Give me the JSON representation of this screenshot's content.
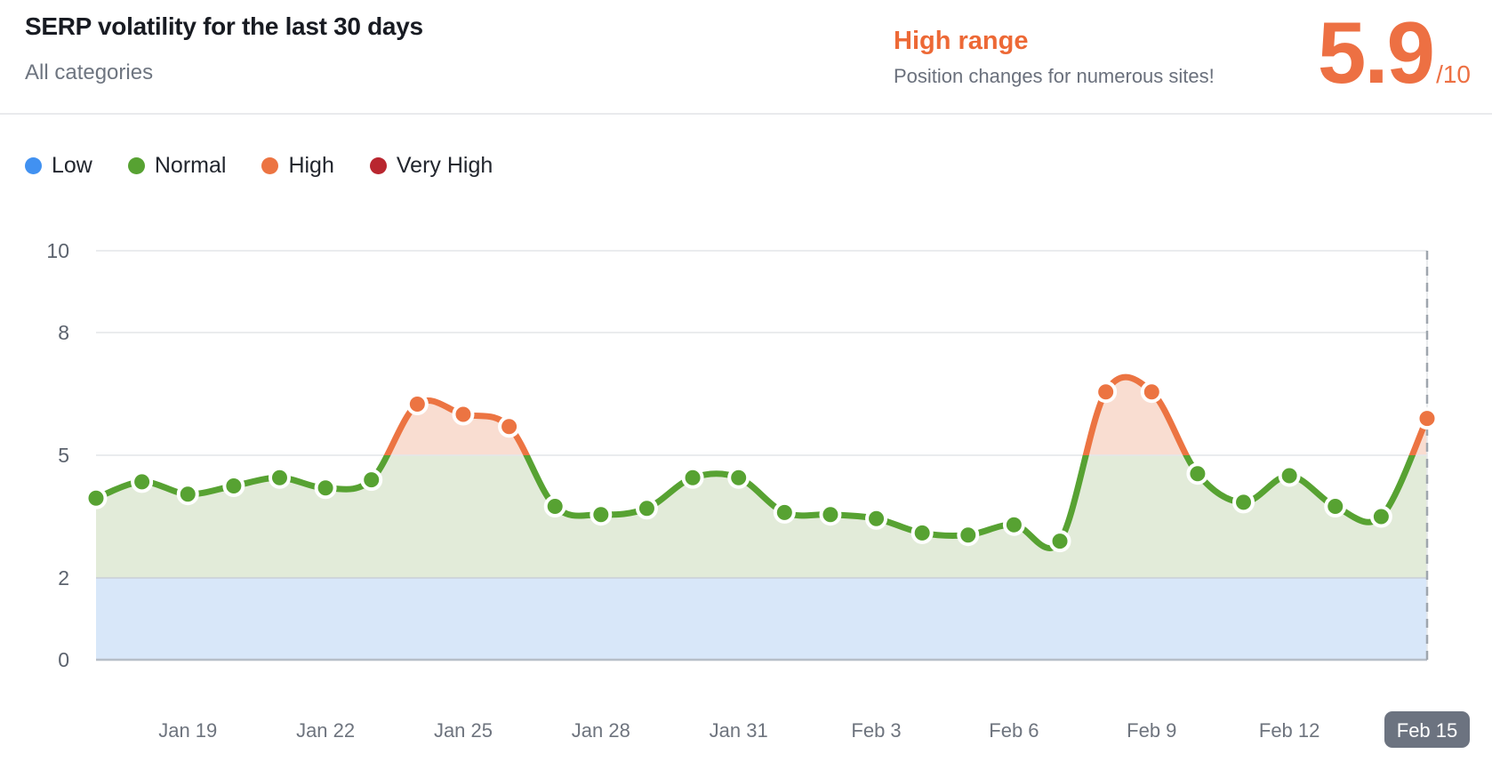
{
  "header": {
    "title": "SERP volatility for the last 30 days",
    "subtitle": "All categories",
    "range_label": "High range",
    "range_description": "Position changes for numerous sites!",
    "score": "5.9",
    "score_suffix": "/10"
  },
  "legend": {
    "items": [
      {
        "label": "Low",
        "color_key": "low"
      },
      {
        "label": "Normal",
        "color_key": "normal"
      },
      {
        "label": "High",
        "color_key": "high"
      },
      {
        "label": "Very High",
        "color_key": "very_high"
      }
    ]
  },
  "colors": {
    "low": "#4191F1",
    "normal": "#57A232",
    "high": "#EC7442",
    "very_high": "#B9262F",
    "fill_low": "#D8E7F9",
    "fill_normal": "#E2EBD9",
    "fill_high": "#F9DDD1",
    "accent_orange": "#ED6936",
    "score_orange": "#ED7043",
    "badge_bg": "#6C7380",
    "badge_text": "#FFFFFF",
    "grid": "#E4E6E9",
    "grid_band": "#C9CFD8",
    "axis": "#B7BEC8",
    "axis_text": "#5C636E",
    "xtick_text": "#6E747E",
    "dashed": "#9FA6AE",
    "dot_ring": "#FFFFFF"
  },
  "chart_data": {
    "type": "line",
    "title": "SERP volatility for the last 30 days",
    "x": [
      "Jan 17",
      "Jan 18",
      "Jan 19",
      "Jan 20",
      "Jan 21",
      "Jan 22",
      "Jan 23",
      "Jan 24",
      "Jan 25",
      "Jan 26",
      "Jan 27",
      "Jan 28",
      "Jan 29",
      "Jan 30",
      "Jan 31",
      "Feb 1",
      "Feb 2",
      "Feb 3",
      "Feb 4",
      "Feb 5",
      "Feb 6",
      "Feb 7",
      "Feb 8",
      "Feb 9",
      "Feb 10",
      "Feb 11",
      "Feb 12",
      "Feb 13",
      "Feb 14",
      "Feb 15"
    ],
    "values": [
      3.95,
      4.35,
      4.05,
      4.25,
      4.45,
      4.2,
      4.4,
      6.25,
      6.0,
      5.7,
      3.75,
      3.55,
      3.7,
      4.45,
      4.45,
      3.6,
      3.55,
      3.45,
      3.1,
      3.05,
      3.3,
      2.9,
      6.55,
      6.55,
      4.55,
      3.85,
      4.5,
      3.75,
      3.5,
      5.9
    ],
    "ylabel": "",
    "xlabel": "",
    "ylim": [
      0,
      10
    ],
    "yticks": [
      0,
      2,
      5,
      8,
      10
    ],
    "xticks": [
      {
        "index": 2,
        "label": "Jan 19"
      },
      {
        "index": 5,
        "label": "Jan 22"
      },
      {
        "index": 8,
        "label": "Jan 25"
      },
      {
        "index": 11,
        "label": "Jan 28"
      },
      {
        "index": 14,
        "label": "Jan 31"
      },
      {
        "index": 17,
        "label": "Feb 3"
      },
      {
        "index": 20,
        "label": "Feb 6"
      },
      {
        "index": 23,
        "label": "Feb 9"
      },
      {
        "index": 26,
        "label": "Feb 12"
      },
      {
        "index": 29,
        "label": "Feb 15",
        "highlighted": true
      }
    ],
    "bands": [
      {
        "label": "Low",
        "range": [
          0,
          2
        ]
      },
      {
        "label": "Normal",
        "range": [
          2,
          5
        ]
      },
      {
        "label": "High",
        "range": [
          5,
          8
        ]
      },
      {
        "label": "Very High",
        "range": [
          8,
          10
        ]
      }
    ],
    "high_threshold": 5,
    "grid": true,
    "legend_position": "top-left",
    "current_point": {
      "x": "Feb 15",
      "value": 5.9
    }
  }
}
